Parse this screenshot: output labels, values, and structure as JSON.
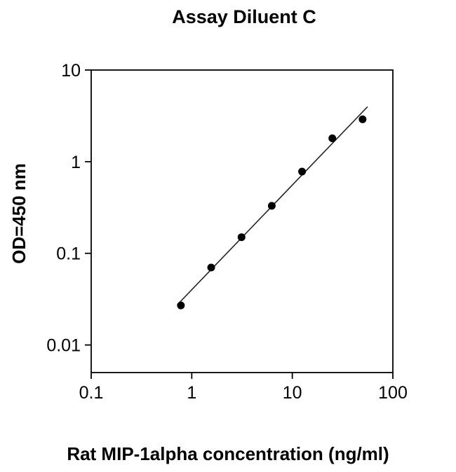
{
  "page": {
    "background": "#ffffff"
  },
  "chart_data": {
    "type": "scatter",
    "title": "Assay Diluent C",
    "xlabel": "Rat MIP-1alpha concentration (ng/ml)",
    "ylabel": "OD=450 nm",
    "x_scale": "log",
    "y_scale": "log",
    "xlim": [
      0.1,
      100
    ],
    "ylim": [
      0.005,
      10
    ],
    "x_ticks": [
      0.1,
      1,
      10,
      100
    ],
    "x_tick_labels": [
      "0.1",
      "1",
      "10",
      "100"
    ],
    "y_ticks": [
      0.01,
      0.1,
      1,
      10
    ],
    "y_tick_labels": [
      "0.01",
      "0.1",
      "1",
      "10"
    ],
    "grid": false,
    "legend": "none",
    "points": [
      {
        "x": 0.78,
        "y": 0.027
      },
      {
        "x": 1.56,
        "y": 0.07
      },
      {
        "x": 3.125,
        "y": 0.15
      },
      {
        "x": 6.25,
        "y": 0.33
      },
      {
        "x": 12.5,
        "y": 0.78
      },
      {
        "x": 25,
        "y": 1.8
      },
      {
        "x": 50,
        "y": 2.9
      }
    ],
    "fit_line": {
      "x_start": 0.72,
      "x_end": 56
    },
    "marker_color": "#000000",
    "line_color": "#222222",
    "axis_color": "#000000"
  }
}
